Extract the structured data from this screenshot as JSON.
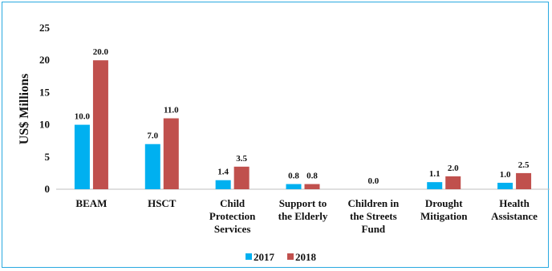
{
  "chart_data": {
    "type": "bar",
    "title": "",
    "ylabel": "US$ Millions",
    "xlabel": "",
    "ylim": [
      0,
      25
    ],
    "yticks": [
      0,
      5,
      10,
      15,
      20,
      25
    ],
    "grid": false,
    "legend_position": "bottom",
    "categories": [
      [
        "BEAM"
      ],
      [
        "HSCT"
      ],
      [
        "Child",
        "Protection",
        "Services"
      ],
      [
        "Support to",
        "the Elderly"
      ],
      [
        "Children in",
        "the Streets",
        "Fund"
      ],
      [
        "Drought",
        "Mitigation"
      ],
      [
        "Health",
        "Assistance"
      ]
    ],
    "series": [
      {
        "name": "2017",
        "color": "#00b0f0",
        "values": [
          10.0,
          7.0,
          1.4,
          0.8,
          0.0,
          1.1,
          1.0
        ],
        "labels": [
          "10.0",
          "7.0",
          "1.4",
          "0.8",
          "0.0",
          "1.1",
          "1.0"
        ]
      },
      {
        "name": "2018",
        "color": "#c0504d",
        "values": [
          20.0,
          11.0,
          3.5,
          0.8,
          0.0,
          2.0,
          2.5
        ],
        "labels": [
          "20.0",
          "11.0",
          "3.5",
          "0.8",
          "",
          "2.0",
          "2.5"
        ]
      }
    ]
  }
}
